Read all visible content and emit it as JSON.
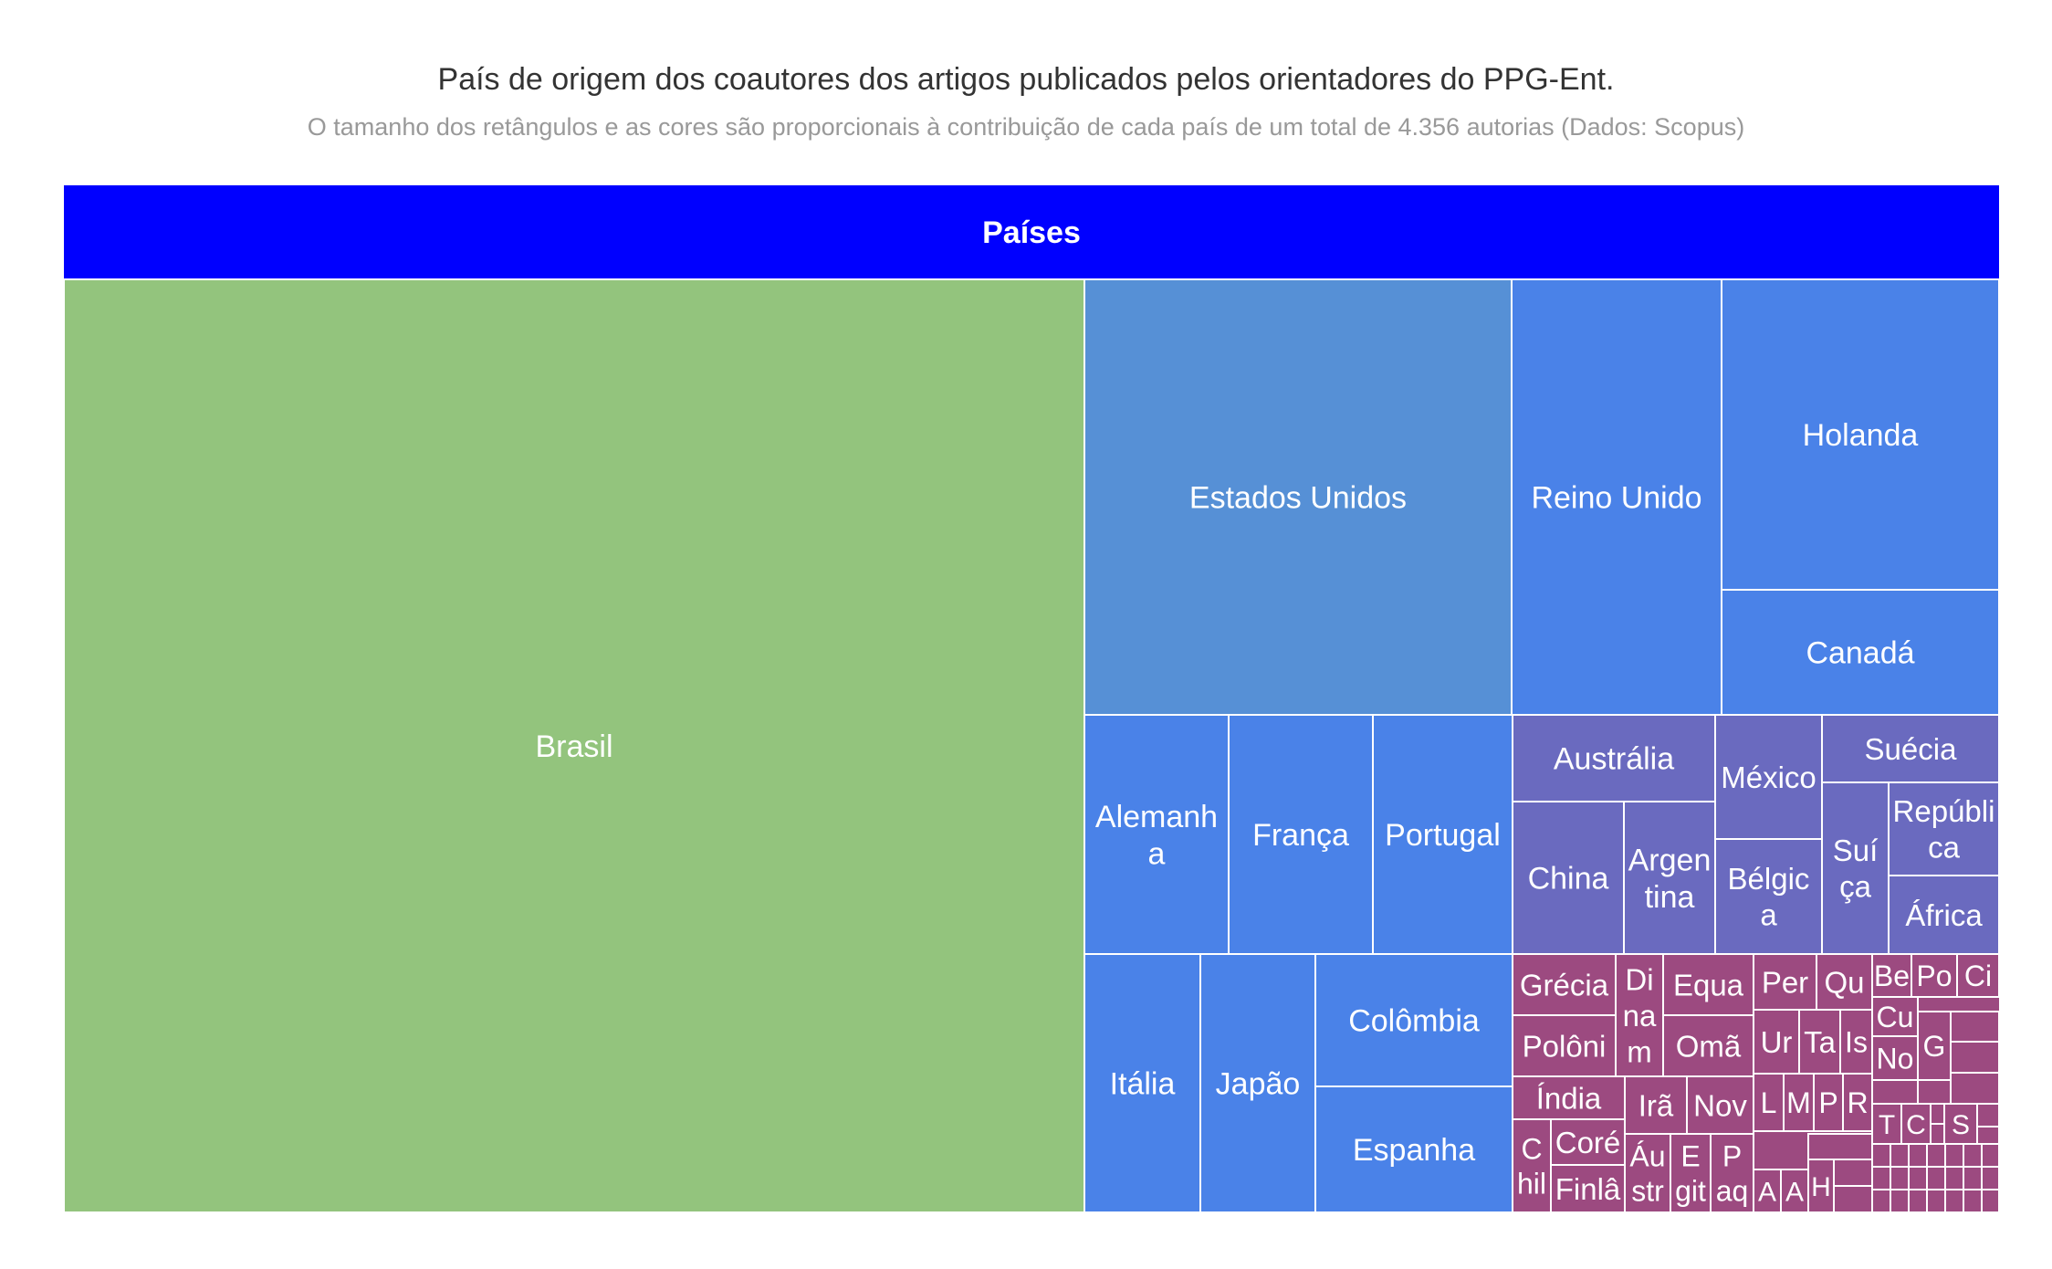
{
  "chart_data": {
    "type": "treemap",
    "title": "País de origem dos coautores dos artigos publicados pelos orientadores do PPG-Ent.",
    "subtitle": "O tamanho dos retângulos e as cores são proporcionais à contribuição de cada país de um total de 4.356 autorias (Dados: Scopus)",
    "header": "Países",
    "header_color": "#0000ff",
    "colors": {
      "brasil": "#93c47d",
      "large": "#5690d6",
      "mid": "#4a82e8",
      "small": "#6a6abf",
      "tiny": "#9c4a80"
    },
    "countries": [
      {
        "label": "Brasil",
        "value": 1540
      },
      {
        "label": "Estados Unidos",
        "value": 302
      },
      {
        "label": "Reino Unido",
        "value": 147
      },
      {
        "label": "Holanda",
        "value": 140
      },
      {
        "label": "Canadá",
        "value": 57
      },
      {
        "label": "Alemanha",
        "value": 56
      },
      {
        "label": "França",
        "value": 55
      },
      {
        "label": "Portugal",
        "value": 53
      },
      {
        "label": "Itália",
        "value": 35
      },
      {
        "label": "Japão",
        "value": 38
      },
      {
        "label": "Colômbia",
        "value": 37
      },
      {
        "label": "Espanha",
        "value": 37
      },
      {
        "label": "Austrália",
        "value": 25
      },
      {
        "label": "China",
        "value": 23
      },
      {
        "label": "Argentina",
        "value": 19
      },
      {
        "label": "México",
        "value": 14
      },
      {
        "label": "Bélgica",
        "value": 14
      },
      {
        "label": "Suécia",
        "value": 11
      },
      {
        "label": "Suíça",
        "value": 12
      },
      {
        "label": "República",
        "value": 9
      },
      {
        "label": "África",
        "value": 8
      }
    ],
    "small_labels": [
      "Grécia",
      "Di na m",
      "Equa",
      "Per",
      "Qu",
      "Be",
      "Po",
      "Ci",
      "Polôni",
      "Omã",
      "Cu",
      "Ur",
      "Ta",
      "Is",
      "No",
      "G",
      "Índia",
      "Irã",
      "Nov",
      "L",
      "M",
      "P",
      "R",
      "C hil",
      "Coré",
      "T",
      "C",
      "S",
      "Finlâ",
      "Áu str",
      "E git",
      "P aq",
      "A",
      "A",
      "H"
    ]
  }
}
